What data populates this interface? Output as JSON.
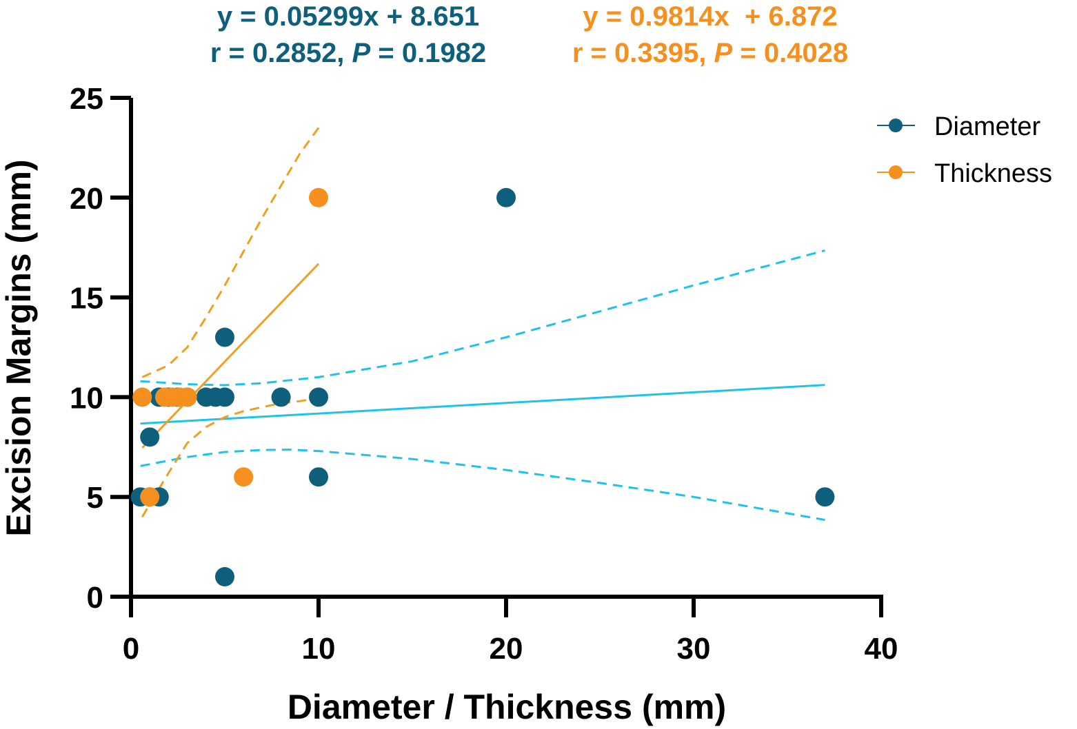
{
  "chart_data": {
    "type": "scatter",
    "title": "",
    "xlabel": "Diameter / Thickness (mm)",
    "ylabel": "Excision Margins (mm)",
    "xlim": [
      0,
      40
    ],
    "ylim": [
      0,
      25
    ],
    "x_ticks": [
      "0",
      "10",
      "20",
      "30",
      "40"
    ],
    "y_ticks": [
      "0",
      "5",
      "10",
      "15",
      "20",
      "25"
    ],
    "grid": false,
    "legend_position": "top-right",
    "colors": {
      "diameter": "#0e5f7c",
      "thickness": "#f5901e",
      "diameter_fit": "#1fc2e8",
      "thickness_fit": "#f0a020",
      "axis": "#000000"
    },
    "series": [
      {
        "key": "diameter",
        "name": "Diameter",
        "points": [
          {
            "x": 0.5,
            "y": 5
          },
          {
            "x": 1,
            "y": 5
          },
          {
            "x": 1.5,
            "y": 5
          },
          {
            "x": 1,
            "y": 8
          },
          {
            "x": 1.5,
            "y": 10
          },
          {
            "x": 2,
            "y": 10
          },
          {
            "x": 2.5,
            "y": 10
          },
          {
            "x": 3,
            "y": 10
          },
          {
            "x": 4,
            "y": 10
          },
          {
            "x": 4.5,
            "y": 10
          },
          {
            "x": 5,
            "y": 10
          },
          {
            "x": 5,
            "y": 13
          },
          {
            "x": 5,
            "y": 1
          },
          {
            "x": 8,
            "y": 10
          },
          {
            "x": 10,
            "y": 10
          },
          {
            "x": 10,
            "y": 6
          },
          {
            "x": 20,
            "y": 20
          },
          {
            "x": 37,
            "y": 5
          }
        ],
        "fit": {
          "equation": "y = 0.05299x + 8.651",
          "stats_prefix": "r = 0.2852, ",
          "p_label": "P",
          "p_value": " = 0.1982",
          "slope": 0.05299,
          "intercept": 8.651,
          "x_range": [
            0.5,
            37
          ],
          "ci_upper": [
            [
              0.5,
              10.8
            ],
            [
              3,
              10.65
            ],
            [
              5,
              10.6
            ],
            [
              7,
              10.7
            ],
            [
              10,
              11.0
            ],
            [
              15,
              11.8
            ],
            [
              20,
              13.0
            ],
            [
              25,
              14.3
            ],
            [
              30,
              15.6
            ],
            [
              37,
              17.35
            ]
          ],
          "ci_lower": [
            [
              0.5,
              6.55
            ],
            [
              3,
              7.0
            ],
            [
              5,
              7.25
            ],
            [
              7,
              7.35
            ],
            [
              8.5,
              7.37
            ],
            [
              10,
              7.3
            ],
            [
              15,
              6.9
            ],
            [
              20,
              6.35
            ],
            [
              25,
              5.7
            ],
            [
              30,
              5.0
            ],
            [
              37,
              3.85
            ]
          ]
        }
      },
      {
        "key": "thickness",
        "name": "Thickness",
        "points": [
          {
            "x": 0.6,
            "y": 10
          },
          {
            "x": 1,
            "y": 5
          },
          {
            "x": 1.8,
            "y": 10
          },
          {
            "x": 2.2,
            "y": 10
          },
          {
            "x": 2.6,
            "y": 10
          },
          {
            "x": 3,
            "y": 10
          },
          {
            "x": 6,
            "y": 6
          },
          {
            "x": 10,
            "y": 20
          }
        ],
        "fit": {
          "equation": "y = 0.9814x  + 6.872",
          "stats_prefix": "r = 0.3395, ",
          "p_label": "P",
          "p_value": " = 0.4028",
          "slope": 0.9814,
          "intercept": 6.872,
          "x_range": [
            0.6,
            10
          ],
          "ci_upper": [
            [
              0.6,
              11.0
            ],
            [
              2,
              11.6
            ],
            [
              3,
              12.5
            ],
            [
              4,
              14.0
            ],
            [
              5,
              15.6
            ],
            [
              6,
              17.3
            ],
            [
              7,
              19.0
            ],
            [
              8,
              20.6
            ],
            [
              9,
              22.2
            ],
            [
              10,
              23.5
            ]
          ],
          "ci_lower": [
            [
              0.6,
              4.0
            ],
            [
              2,
              6.2
            ],
            [
              3,
              7.7
            ],
            [
              4,
              8.5
            ],
            [
              5,
              9.0
            ],
            [
              6,
              9.3
            ],
            [
              7,
              9.5
            ],
            [
              8,
              9.7
            ],
            [
              9,
              9.8
            ],
            [
              10,
              9.95
            ]
          ]
        }
      }
    ]
  }
}
